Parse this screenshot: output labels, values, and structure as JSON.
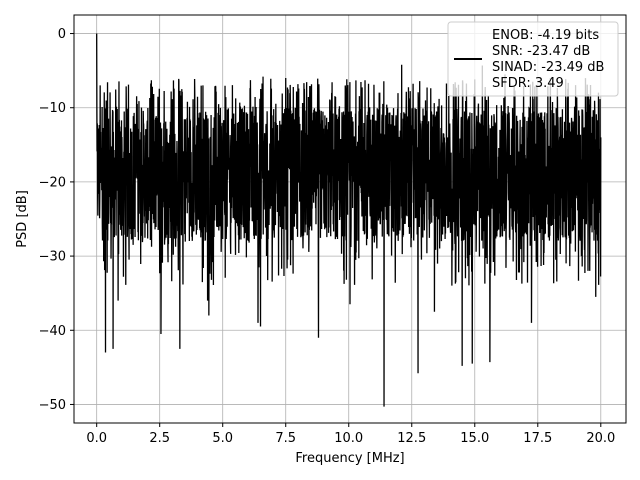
{
  "chart_data": {
    "type": "line",
    "title": "",
    "xlabel": "Frequency [MHz]",
    "ylabel": "PSD [dB]",
    "xlim": [
      -0.9,
      21.0
    ],
    "ylim": [
      -52.5,
      2.5
    ],
    "xticks": [
      0.0,
      2.5,
      5.0,
      7.5,
      10.0,
      12.5,
      15.0,
      17.5,
      20.0
    ],
    "xtick_labels": [
      "0.0",
      "2.5",
      "5.0",
      "7.5",
      "10.0",
      "12.5",
      "15.0",
      "17.5",
      "20.0"
    ],
    "yticks": [
      0,
      -10,
      -20,
      -30,
      -40,
      -50
    ],
    "ytick_labels": [
      "0",
      "−10",
      "−20",
      "−30",
      "−40",
      "−50"
    ],
    "grid": true,
    "legend_position": "top-right",
    "legend_lines": [
      "ENOB: -4.19 bits",
      "SNR: -23.47 dB",
      "SINAD: -23.49 dB",
      "SFDR: 3.49"
    ],
    "series": [
      {
        "color": "#000000",
        "x_start": 0.0,
        "x_end": 20.0,
        "noise_floor_center": -20,
        "noise_band": [
          -28,
          -10
        ],
        "values_note_free": true,
        "peaks": [
          {
            "x": 0.0,
            "y": 0.0
          },
          {
            "x": 0.05,
            "y": -21.5
          },
          {
            "x": 0.35,
            "y": -43.0
          },
          {
            "x": 0.65,
            "y": -42.5
          },
          {
            "x": 0.85,
            "y": -36.0
          },
          {
            "x": 2.55,
            "y": -40.5
          },
          {
            "x": 3.3,
            "y": -42.5
          },
          {
            "x": 4.4,
            "y": -36.0
          },
          {
            "x": 4.45,
            "y": -38.0
          },
          {
            "x": 6.4,
            "y": -39.0
          },
          {
            "x": 6.5,
            "y": -39.5
          },
          {
            "x": 6.6,
            "y": -41.5
          },
          {
            "x": 8.8,
            "y": -41.0
          },
          {
            "x": 10.05,
            "y": -36.5
          },
          {
            "x": 11.4,
            "y": -50.3
          },
          {
            "x": 12.1,
            "y": -40.5
          },
          {
            "x": 12.75,
            "y": -45.8
          },
          {
            "x": 13.4,
            "y": -37.5
          },
          {
            "x": 14.5,
            "y": -44.8
          },
          {
            "x": 14.9,
            "y": -44.5
          },
          {
            "x": 15.6,
            "y": -44.3
          },
          {
            "x": 16.2,
            "y": -36.0
          },
          {
            "x": 17.25,
            "y": -39.0
          },
          {
            "x": 19.8,
            "y": -35.5
          },
          {
            "x": 6.6,
            "y": -5.8
          },
          {
            "x": 7.5,
            "y": -6.0
          },
          {
            "x": 12.1,
            "y": -4.2
          },
          {
            "x": 15.3,
            "y": -4.3
          },
          {
            "x": 16.2,
            "y": -5.5
          },
          {
            "x": 18.0,
            "y": -6.0
          },
          {
            "x": 20.0,
            "y": -14.0
          }
        ]
      }
    ]
  }
}
